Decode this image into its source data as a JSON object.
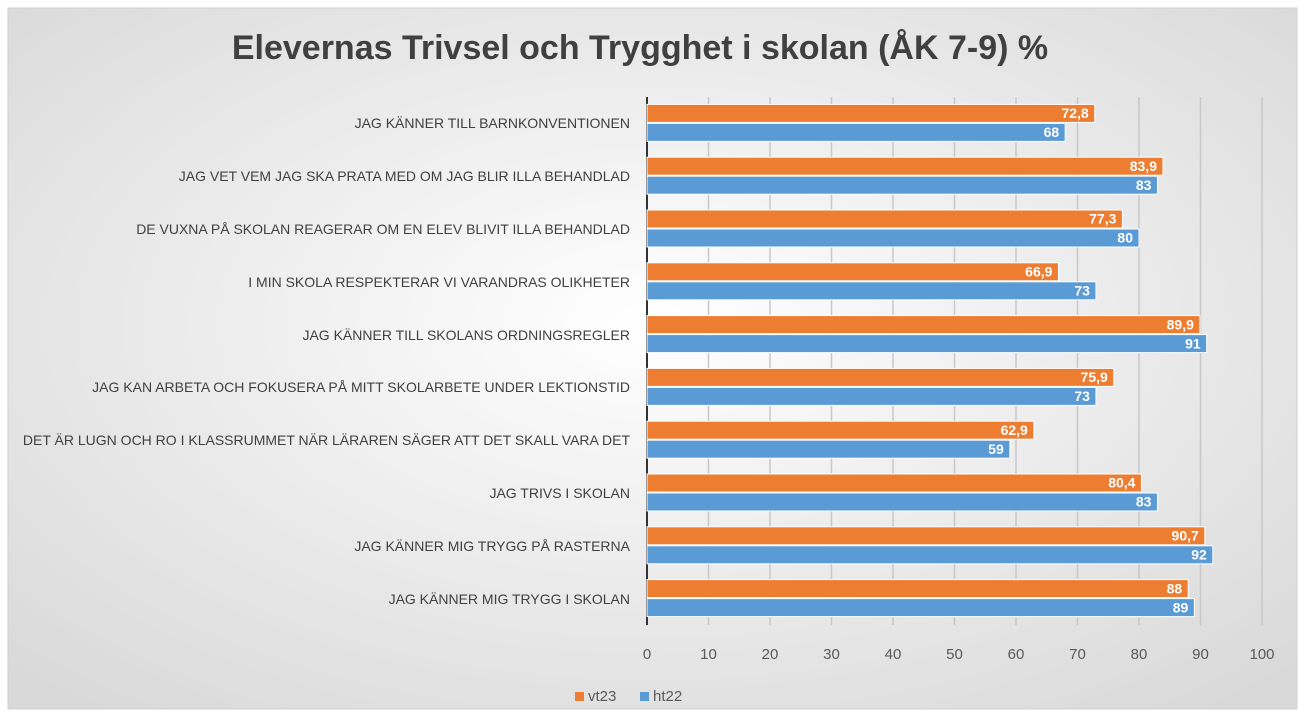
{
  "chart_data": {
    "type": "hbar",
    "title": "Elevernas Trivsel och Trygghet i skolan (ÅK 7-9) %",
    "categories": [
      "JAG KÄNNER TILL BARNKONVENTIONEN",
      "JAG VET VEM JAG SKA PRATA MED OM JAG BLIR ILLA BEHANDLAD",
      "DE VUXNA PÅ SKOLAN REAGERAR OM EN ELEV BLIVIT ILLA BEHANDLAD",
      "I MIN SKOLA RESPEKTERAR VI VARANDRAS OLIKHETER",
      "JAG KÄNNER TILL SKOLANS ORDNINGSREGLER",
      "JAG KAN ARBETA OCH FOKUSERA PÅ MITT SKOLARBETE UNDER LEKTIONSTID",
      "DET ÄR LUGN OCH RO I KLASSRUMMET NÄR LÄRAREN SÄGER ATT DET SKALL VARA DET",
      "JAG TRIVS I SKOLAN",
      "JAG KÄNNER MIG TRYGG PÅ RASTERNA",
      "JAG KÄNNER MIG TRYGG I SKOLAN"
    ],
    "series": [
      {
        "name": "vt23",
        "color": "#ed7d31",
        "values": [
          72.8,
          83.9,
          77.3,
          66.9,
          89.9,
          75.9,
          62.9,
          80.4,
          90.7,
          88
        ],
        "value_labels": [
          "72,8",
          "83,9",
          "77,3",
          "66,9",
          "89,9",
          "75,9",
          "62,9",
          "80,4",
          "90,7",
          "88"
        ]
      },
      {
        "name": "ht22",
        "color": "#5b9bd5",
        "values": [
          68,
          83,
          80,
          73,
          91,
          73,
          59,
          83,
          92,
          89
        ]
      }
    ],
    "xlim": [
      0,
      100
    ],
    "xticks": [
      0,
      10,
      20,
      30,
      40,
      50,
      60,
      70,
      80,
      90,
      100
    ],
    "grid": true,
    "legend": "bottom"
  }
}
